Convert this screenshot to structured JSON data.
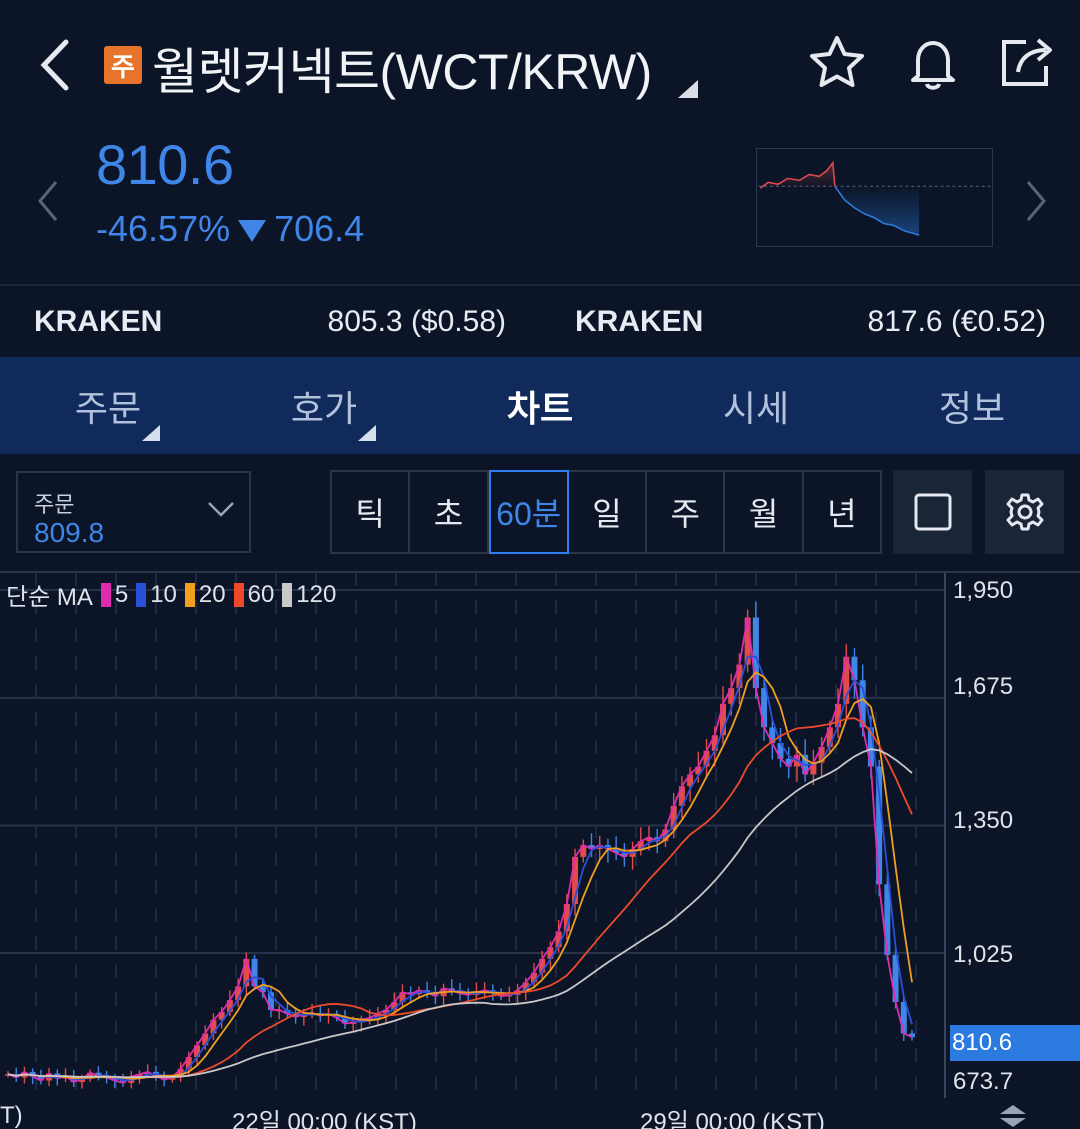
{
  "header": {
    "badge": "주",
    "title": "월렛커넥트(WCT/KRW)",
    "icons": [
      "back-chevron-icon",
      "star-icon",
      "bell-icon",
      "share-icon"
    ]
  },
  "quote": {
    "price": "810.6",
    "change_pct": "-46.57%",
    "change_abs": "706.4",
    "direction": "down",
    "color_down": "#3f86e8",
    "color_up": "#e24b4b"
  },
  "exchanges": [
    {
      "name": "KRAKEN",
      "value": "805.3 ($0.58)"
    },
    {
      "name": "KRAKEN",
      "value": "817.6 (€0.52)"
    }
  ],
  "tabs": [
    {
      "label": "주문",
      "has_menu": true
    },
    {
      "label": "호가",
      "has_menu": true
    },
    {
      "label": "차트",
      "active": true
    },
    {
      "label": "시세"
    },
    {
      "label": "정보"
    }
  ],
  "toolbar": {
    "order_label": "주문",
    "order_value": "809.8",
    "periods": [
      "틱",
      "초",
      "60분",
      "일",
      "주",
      "월",
      "년"
    ],
    "active_period": "60분",
    "tools": [
      "square-icon",
      "gear-icon"
    ]
  },
  "chart_data": {
    "type": "candlestick",
    "indicator": "단순 MA",
    "ma_legend": [
      {
        "label": "5",
        "color": "#e02ab0"
      },
      {
        "label": "10",
        "color": "#2a4fd8"
      },
      {
        "label": "20",
        "color": "#f0a020"
      },
      {
        "label": "60",
        "color": "#ee4a2a"
      },
      {
        "label": "120",
        "color": "#c8c8c8"
      }
    ],
    "y_ticks": [
      "1,950",
      "1,675",
      "1,350",
      "1,025",
      "673.7"
    ],
    "current_price_tag": "810.6",
    "x_ticks": [
      "T)",
      "22일 00:00 (KST)",
      "29일 00:00 (KST)"
    ],
    "ylim": [
      640,
      1990
    ],
    "close": [
      716,
      708,
      722,
      710,
      700,
      718,
      705,
      712,
      696,
      704,
      720,
      712,
      708,
      700,
      694,
      710,
      716,
      722,
      712,
      702,
      708,
      730,
      760,
      790,
      820,
      855,
      875,
      905,
      940,
      1010,
      940,
      925,
      880,
      880,
      870,
      862,
      870,
      872,
      865,
      870,
      860,
      845,
      848,
      855,
      860,
      870,
      880,
      900,
      925,
      920,
      930,
      925,
      915,
      935,
      930,
      922,
      918,
      925,
      930,
      925,
      915,
      918,
      930,
      950,
      975,
      1010,
      1040,
      1080,
      1150,
      1270,
      1300,
      1290,
      1300,
      1290,
      1280,
      1270,
      1290,
      1310,
      1320,
      1310,
      1340,
      1400,
      1450,
      1480,
      1500,
      1540,
      1580,
      1660,
      1700,
      1760,
      1880,
      1700,
      1600,
      1560,
      1520,
      1500,
      1530,
      1480,
      1510,
      1550,
      1600,
      1660,
      1780,
      1720,
      1600,
      1500,
      1200,
      1020,
      900,
      820,
      810.6
    ]
  }
}
